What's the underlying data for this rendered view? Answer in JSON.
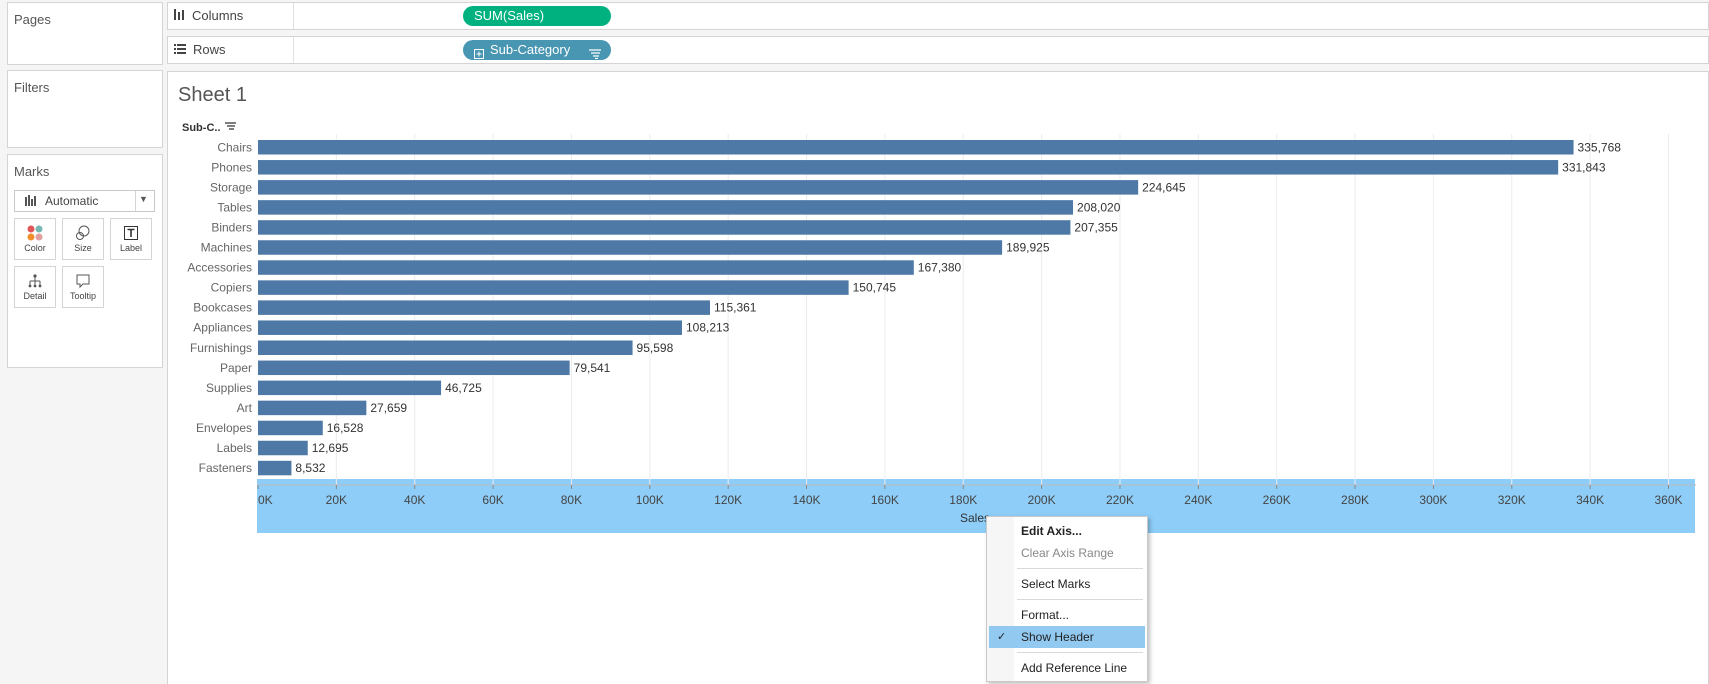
{
  "left_panel": {
    "pages_title": "Pages",
    "filters_title": "Filters",
    "marks_title": "Marks",
    "mark_type": "Automatic",
    "mark_cards": [
      {
        "label": "Color",
        "icon": "color-dots-icon"
      },
      {
        "label": "Size",
        "icon": "size-circles-icon"
      },
      {
        "label": "Label",
        "icon": "text-label-icon"
      },
      {
        "label": "Detail",
        "icon": "detail-tree-icon"
      },
      {
        "label": "Tooltip",
        "icon": "tooltip-bubble-icon"
      }
    ]
  },
  "shelves": {
    "columns_label": "Columns",
    "columns_pill": "SUM(Sales)",
    "rows_label": "Rows",
    "rows_pill": "Sub-Category"
  },
  "sheet": {
    "title": "Sheet 1",
    "row_header": "Sub-C..",
    "axis_title": "Sales"
  },
  "colors": {
    "bar": "#4e79a7",
    "axis_highlight": "#8ecdf8",
    "columns_pill": "#00b180",
    "rows_pill": "#4996b2",
    "menu_highlight": "#92c9f1"
  },
  "chart_data": {
    "type": "bar",
    "orientation": "horizontal",
    "categories": [
      "Chairs",
      "Phones",
      "Storage",
      "Tables",
      "Binders",
      "Machines",
      "Accessories",
      "Copiers",
      "Bookcases",
      "Appliances",
      "Furnishings",
      "Paper",
      "Supplies",
      "Art",
      "Envelopes",
      "Labels",
      "Fasteners"
    ],
    "values": [
      335768,
      331843,
      224645,
      208020,
      207355,
      189925,
      167380,
      150745,
      115361,
      108213,
      95598,
      79541,
      46725,
      27659,
      16528,
      12695,
      8532
    ],
    "value_labels": [
      "335,768",
      "331,843",
      "224,645",
      "208,020",
      "207,355",
      "189,925",
      "167,380",
      "150,745",
      "115,361",
      "108,213",
      "95,598",
      "79,541",
      "46,725",
      "27,659",
      "16,528",
      "12,695",
      "8,532"
    ],
    "xlabel": "Sales",
    "ylabel": "Sub-C..",
    "xlim": [
      0,
      366000
    ],
    "x_ticks": [
      0,
      20000,
      40000,
      60000,
      80000,
      100000,
      120000,
      140000,
      160000,
      180000,
      200000,
      220000,
      240000,
      260000,
      280000,
      300000,
      320000,
      340000,
      360000
    ],
    "x_tick_labels": [
      "0K",
      "20K",
      "40K",
      "60K",
      "80K",
      "100K",
      "120K",
      "140K",
      "160K",
      "180K",
      "200K",
      "220K",
      "240K",
      "260K",
      "280K",
      "300K",
      "320K",
      "340K",
      "360K"
    ],
    "grid": true
  },
  "context_menu": {
    "items": [
      {
        "label": "Edit Axis...",
        "bold": true
      },
      {
        "label": "Clear Axis Range",
        "disabled": true
      },
      {
        "label": "Select Marks"
      },
      {
        "label": "Format..."
      },
      {
        "label": "Show Header",
        "checked": true,
        "highlighted": true
      },
      {
        "label": "Add Reference Line"
      }
    ]
  }
}
